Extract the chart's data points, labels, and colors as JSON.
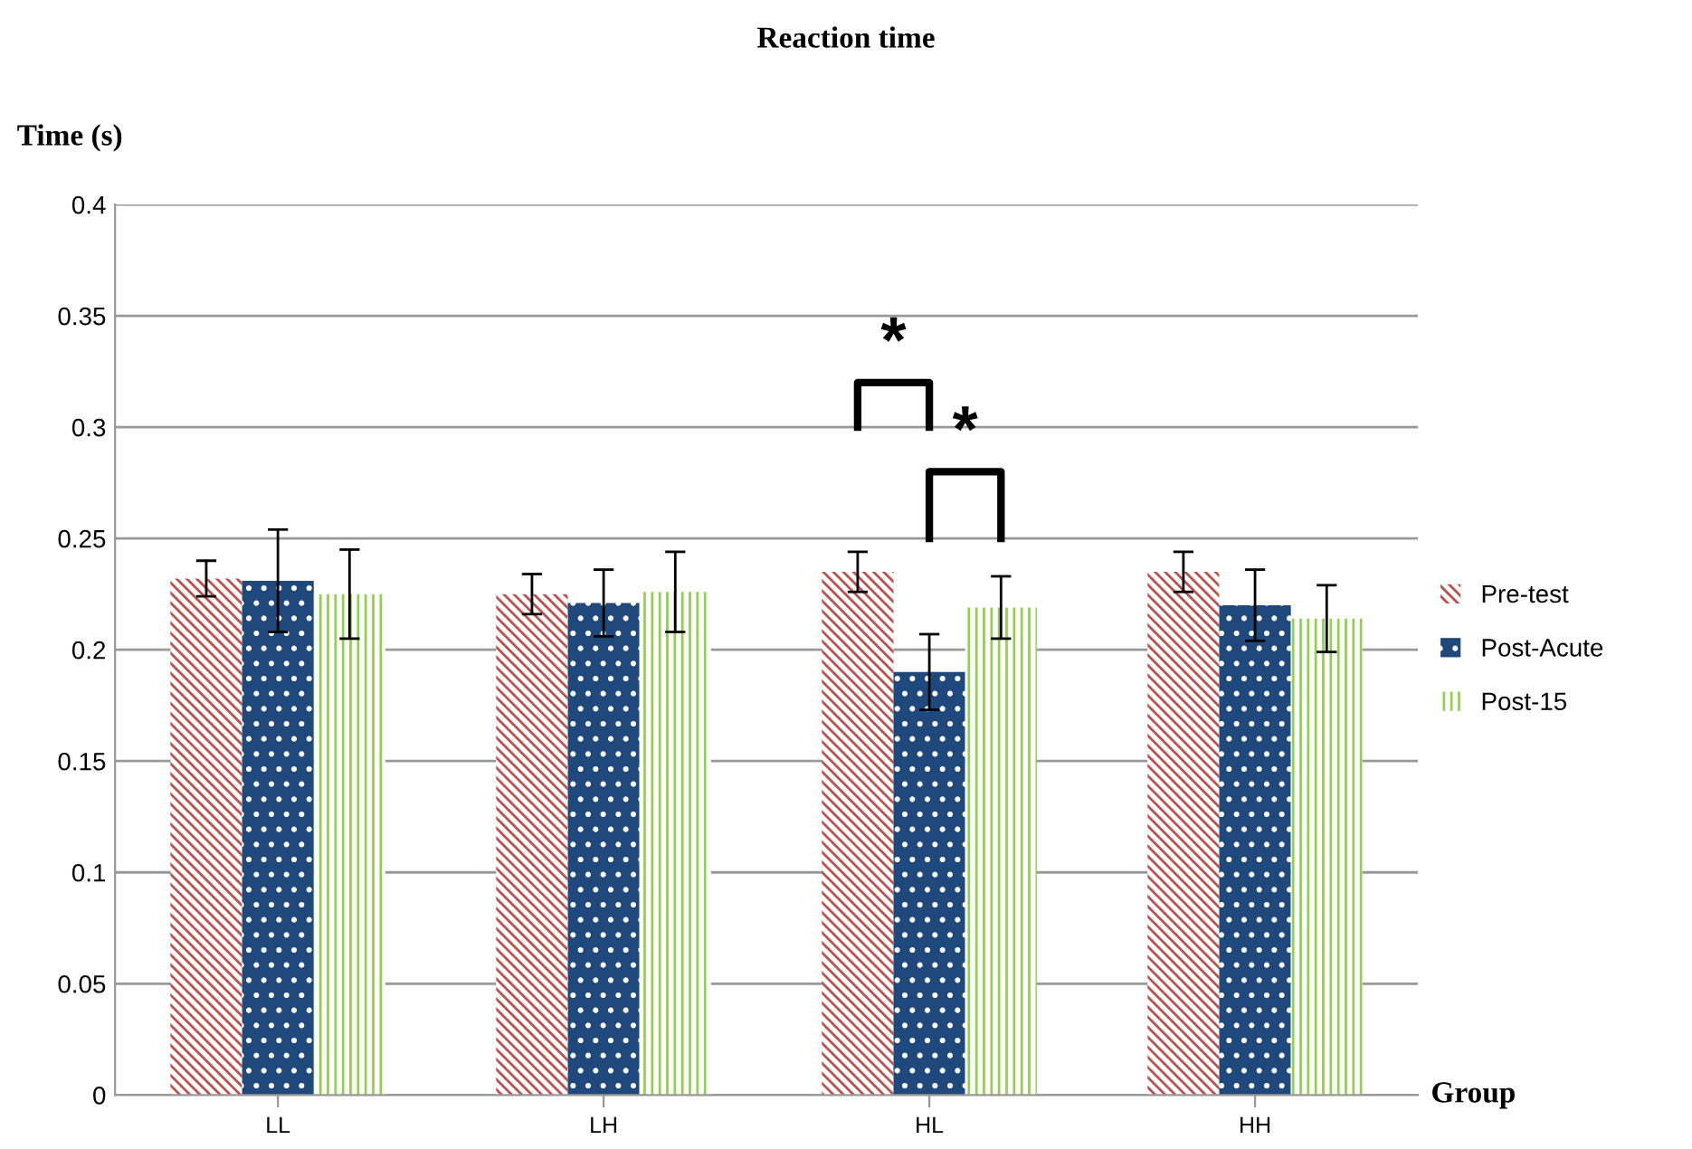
{
  "chart_data": {
    "type": "bar",
    "title": "Reaction time",
    "xlabel": "Group",
    "ylabel": "Time (s)",
    "categories": [
      "LL",
      "LH",
      "HL",
      "HH"
    ],
    "series": [
      {
        "name": "Pre-test",
        "color": "#c0504d",
        "values": [
          0.232,
          0.225,
          0.235,
          0.235
        ],
        "errors": [
          0.008,
          0.009,
          0.009,
          0.009
        ]
      },
      {
        "name": "Post-Acute",
        "color": "#1f497d",
        "values": [
          0.231,
          0.221,
          0.19,
          0.22
        ],
        "errors": [
          0.023,
          0.015,
          0.017,
          0.016
        ]
      },
      {
        "name": "Post-15",
        "color": "#92d050",
        "values": [
          0.225,
          0.226,
          0.219,
          0.214
        ],
        "errors": [
          0.02,
          0.018,
          0.014,
          0.015
        ]
      }
    ],
    "ylim": [
      0,
      0.4
    ],
    "yticks": [
      0,
      0.05,
      0.1,
      0.15,
      0.2,
      0.25,
      0.3,
      0.35,
      0.4
    ],
    "grid": "y",
    "legend": "right",
    "annotations": [
      "*",
      "*"
    ]
  }
}
